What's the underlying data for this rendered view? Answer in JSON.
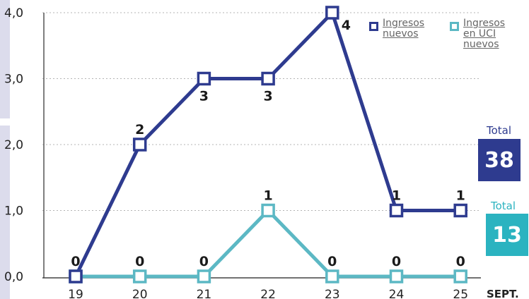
{
  "colors": {
    "ingresos": "#2e3b8f",
    "uci": "#5cb8c4",
    "grid": "#b4b4b4",
    "axis_text": "#222222",
    "total_ingresos_bg": "#2e3b8f",
    "total_uci_bg": "#2bb3c0"
  },
  "chart_data": {
    "type": "line",
    "categories": [
      "19",
      "20",
      "21",
      "22",
      "23",
      "24",
      "25"
    ],
    "x_unit_label": "SEPT.",
    "yticks": [
      "0,0",
      "1,0",
      "2,0",
      "3,0",
      "4,0"
    ],
    "ylim": [
      0,
      4
    ],
    "grid": true,
    "legend_position": "top-right",
    "series": [
      {
        "key": "ingresos",
        "name": "Ingresos\nnuevos",
        "values": [
          0,
          2,
          3,
          3,
          4,
          1,
          1
        ],
        "labels": [
          "0",
          "2",
          "3",
          "3",
          "4",
          "1",
          "1"
        ]
      },
      {
        "key": "uci",
        "name": "Ingresos\nen UCI\nnuevos",
        "values": [
          0,
          0,
          0,
          1,
          0,
          0,
          0
        ],
        "labels": [
          "0",
          "0",
          "0",
          "1",
          "0",
          "0",
          "0"
        ]
      }
    ]
  },
  "totals": {
    "ingresos": {
      "label": "Total",
      "value": "38"
    },
    "uci": {
      "label": "Total",
      "value": "13"
    }
  }
}
